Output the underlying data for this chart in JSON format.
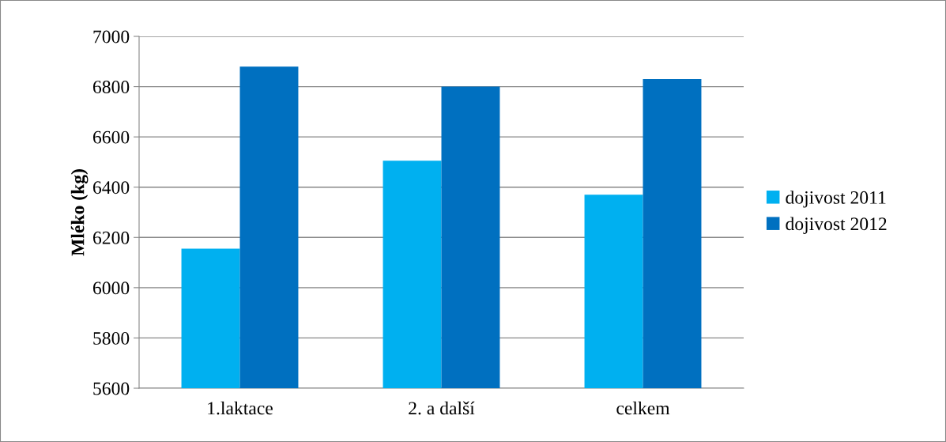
{
  "chart_data": {
    "type": "bar",
    "ylabel": "Mléko (kg)",
    "categories": [
      "1.laktace",
      "2. a další",
      "celkem"
    ],
    "series": [
      {
        "name": "dojivost 2011",
        "color": "#00b0f0",
        "values": [
          6155,
          6505,
          6370
        ]
      },
      {
        "name": "dojivost 2012",
        "color": "#0070c0",
        "values": [
          6880,
          6800,
          6830
        ]
      }
    ],
    "ylim": [
      5600,
      7000
    ],
    "yticks": [
      5600,
      5800,
      6000,
      6200,
      6400,
      6600,
      6800,
      7000
    ],
    "grid": "y",
    "legend": "right"
  }
}
